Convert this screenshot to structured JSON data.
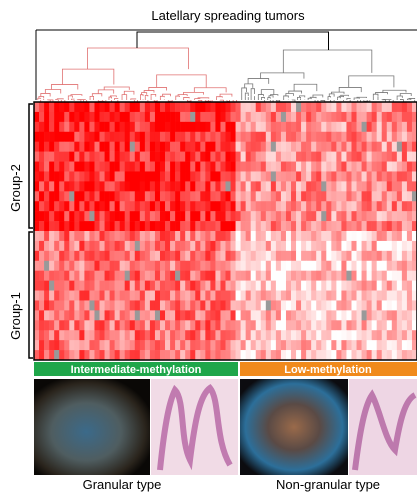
{
  "header": {
    "title": "Latellary spreading tumors"
  },
  "groups": [
    "Group-2",
    "Group-1"
  ],
  "methylation": [
    "Intermediate-methylation",
    "Low-methylation"
  ],
  "types": [
    "Granular type",
    "Non-granular type"
  ]
}
